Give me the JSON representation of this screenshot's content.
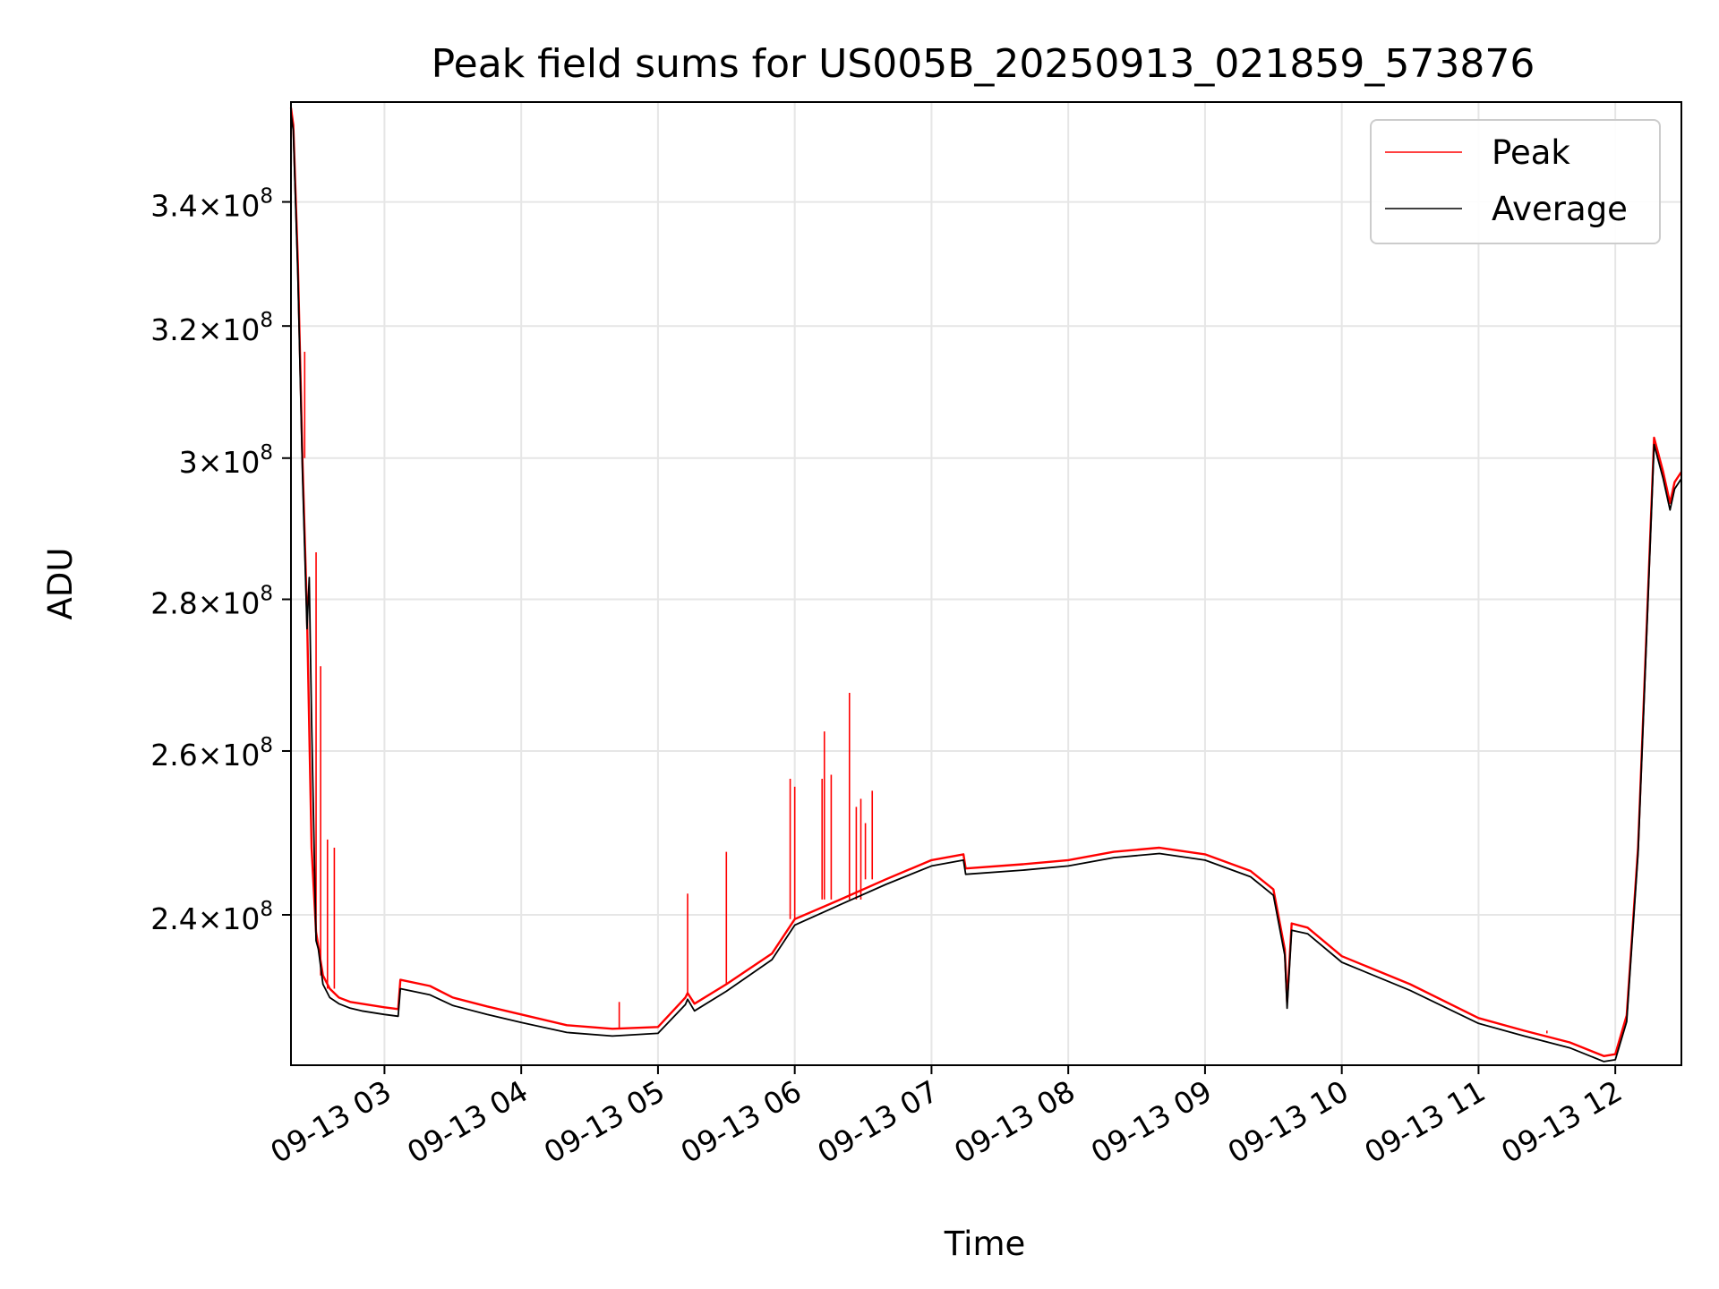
{
  "chart_data": {
    "type": "line",
    "title": "Peak field sums for US005B_20250913_021859_573876",
    "xlabel": "Time",
    "ylabel": "ADU",
    "x_range": [
      "2025-09-13 02:18:59",
      "2025-09-13 12:29:00"
    ],
    "y_range": [
      223000000,
      357000000
    ],
    "y_scale": "log",
    "grid": true,
    "legend_position": "upper right",
    "x_ticks": [
      {
        "label": "09-13 03",
        "t": "2025-09-13 03:00"
      },
      {
        "label": "09-13 04",
        "t": "2025-09-13 04:00"
      },
      {
        "label": "09-13 05",
        "t": "2025-09-13 05:00"
      },
      {
        "label": "09-13 06",
        "t": "2025-09-13 06:00"
      },
      {
        "label": "09-13 07",
        "t": "2025-09-13 07:00"
      },
      {
        "label": "09-13 08",
        "t": "2025-09-13 08:00"
      },
      {
        "label": "09-13 09",
        "t": "2025-09-13 09:00"
      },
      {
        "label": "09-13 10",
        "t": "2025-09-13 10:00"
      },
      {
        "label": "09-13 11",
        "t": "2025-09-13 11:00"
      },
      {
        "label": "09-13 12",
        "t": "2025-09-13 12:00"
      }
    ],
    "y_ticks": [
      {
        "mant": "2.4",
        "value": 240000000
      },
      {
        "mant": "2.6",
        "value": 260000000
      },
      {
        "mant": "2.8",
        "value": 280000000
      },
      {
        "mant": "3",
        "value": 300000000
      },
      {
        "mant": "3.2",
        "value": 320000000
      },
      {
        "mant": "3.4",
        "value": 340000000
      }
    ],
    "tick_times": "×10",
    "tick_exp": "8",
    "series": [
      {
        "name": "Peak",
        "color": "#ff0000",
        "x": [
          "2025-09-13 02:19",
          "2025-09-13 02:20",
          "2025-09-13 02:22",
          "2025-09-13 02:24",
          "2025-09-13 02:26",
          "2025-09-13 02:28",
          "2025-09-13 02:30",
          "2025-09-13 02:33",
          "2025-09-13 02:36",
          "2025-09-13 02:40",
          "2025-09-13 02:45",
          "2025-09-13 02:50",
          "2025-09-13 02:55",
          "2025-09-13 03:00",
          "2025-09-13 03:06",
          "2025-09-13 03:07",
          "2025-09-13 03:20",
          "2025-09-13 03:30",
          "2025-09-13 03:45",
          "2025-09-13 04:00",
          "2025-09-13 04:20",
          "2025-09-13 04:40",
          "2025-09-13 05:00",
          "2025-09-13 05:12",
          "2025-09-13 05:13",
          "2025-09-13 05:16",
          "2025-09-13 05:30",
          "2025-09-13 05:50",
          "2025-09-13 06:00",
          "2025-09-13 06:20",
          "2025-09-13 06:40",
          "2025-09-13 07:00",
          "2025-09-13 07:14",
          "2025-09-13 07:15",
          "2025-09-13 07:40",
          "2025-09-13 08:00",
          "2025-09-13 08:20",
          "2025-09-13 08:40",
          "2025-09-13 09:00",
          "2025-09-13 09:20",
          "2025-09-13 09:30",
          "2025-09-13 09:35",
          "2025-09-13 09:36",
          "2025-09-13 09:38",
          "2025-09-13 09:45",
          "2025-09-13 10:00",
          "2025-09-13 10:30",
          "2025-09-13 11:00",
          "2025-09-13 11:20",
          "2025-09-13 11:40",
          "2025-09-13 11:55",
          "2025-09-13 12:00",
          "2025-09-13 12:05",
          "2025-09-13 12:10",
          "2025-09-13 12:14",
          "2025-09-13 12:17",
          "2025-09-13 12:21",
          "2025-09-13 12:24",
          "2025-09-13 12:26",
          "2025-09-13 12:29"
        ],
        "values": [
          356000000,
          353000000,
          330000000,
          300000000,
          278000000,
          248000000,
          238000000,
          233000000,
          231500000,
          230500000,
          230000000,
          229800000,
          229600000,
          229400000,
          229200000,
          232500000,
          231800000,
          230500000,
          229500000,
          228600000,
          227400000,
          227000000,
          227200000,
          230500000,
          231000000,
          229800000,
          232000000,
          235500000,
          239500000,
          241800000,
          244200000,
          246500000,
          247200000,
          245500000,
          246000000,
          246500000,
          247500000,
          248000000,
          247200000,
          245200000,
          243000000,
          236000000,
          230000000,
          239000000,
          238500000,
          235200000,
          232000000,
          228200000,
          226800000,
          225500000,
          224000000,
          224200000,
          228500000,
          248000000,
          278000000,
          303000000,
          298000000,
          293500000,
          296500000,
          298000000
        ],
        "spikes": [
          {
            "t": "2025-09-13 02:25",
            "value": 316000000
          },
          {
            "t": "2025-09-13 02:30",
            "value": 286500000
          },
          {
            "t": "2025-09-13 02:32",
            "value": 271000000
          },
          {
            "t": "2025-09-13 02:35",
            "value": 249000000
          },
          {
            "t": "2025-09-13 02:38",
            "value": 248000000
          },
          {
            "t": "2025-09-13 04:43",
            "value": 230000000
          },
          {
            "t": "2025-09-13 05:13",
            "value": 242500000
          },
          {
            "t": "2025-09-13 05:30",
            "value": 247500000
          },
          {
            "t": "2025-09-13 05:58",
            "value": 256500000
          },
          {
            "t": "2025-09-13 06:00",
            "value": 255500000
          },
          {
            "t": "2025-09-13 06:12",
            "value": 256500000
          },
          {
            "t": "2025-09-13 06:13",
            "value": 262500000
          },
          {
            "t": "2025-09-13 06:16",
            "value": 257000000
          },
          {
            "t": "2025-09-13 06:24",
            "value": 267500000
          },
          {
            "t": "2025-09-13 06:27",
            "value": 253000000
          },
          {
            "t": "2025-09-13 06:29",
            "value": 254000000
          },
          {
            "t": "2025-09-13 06:31",
            "value": 251000000
          },
          {
            "t": "2025-09-13 06:34",
            "value": 255000000
          },
          {
            "t": "2025-09-13 11:30",
            "value": 226500000
          },
          {
            "t": "2025-09-13 11:40",
            "value": 225500000
          }
        ]
      },
      {
        "name": "Average",
        "color": "#000000",
        "x": [
          "2025-09-13 02:19",
          "2025-09-13 02:20",
          "2025-09-13 02:22",
          "2025-09-13 02:24",
          "2025-09-13 02:26",
          "2025-09-13 02:27",
          "2025-09-13 02:28",
          "2025-09-13 02:30",
          "2025-09-13 02:31",
          "2025-09-13 02:33",
          "2025-09-13 02:36",
          "2025-09-13 02:40",
          "2025-09-13 02:45",
          "2025-09-13 02:50",
          "2025-09-13 02:55",
          "2025-09-13 03:00",
          "2025-09-13 03:06",
          "2025-09-13 03:07",
          "2025-09-13 03:20",
          "2025-09-13 03:30",
          "2025-09-13 03:45",
          "2025-09-13 04:00",
          "2025-09-13 04:20",
          "2025-09-13 04:40",
          "2025-09-13 05:00",
          "2025-09-13 05:12",
          "2025-09-13 05:13",
          "2025-09-13 05:16",
          "2025-09-13 05:30",
          "2025-09-13 05:50",
          "2025-09-13 06:00",
          "2025-09-13 06:20",
          "2025-09-13 06:40",
          "2025-09-13 07:00",
          "2025-09-13 07:14",
          "2025-09-13 07:15",
          "2025-09-13 07:40",
          "2025-09-13 08:00",
          "2025-09-13 08:20",
          "2025-09-13 08:40",
          "2025-09-13 09:00",
          "2025-09-13 09:20",
          "2025-09-13 09:30",
          "2025-09-13 09:35",
          "2025-09-13 09:36",
          "2025-09-13 09:38",
          "2025-09-13 09:45",
          "2025-09-13 10:00",
          "2025-09-13 10:30",
          "2025-09-13 11:00",
          "2025-09-13 11:20",
          "2025-09-13 11:40",
          "2025-09-13 11:55",
          "2025-09-13 12:00",
          "2025-09-13 12:05",
          "2025-09-13 12:10",
          "2025-09-13 12:14",
          "2025-09-13 12:17",
          "2025-09-13 12:21",
          "2025-09-13 12:24",
          "2025-09-13 12:26",
          "2025-09-13 12:29"
        ],
        "values": [
          355000000,
          352000000,
          328000000,
          298000000,
          276000000,
          283000000,
          264000000,
          237000000,
          236000000,
          232000000,
          230500000,
          229800000,
          229300000,
          229000000,
          228800000,
          228600000,
          228400000,
          231500000,
          230800000,
          229600000,
          228600000,
          227700000,
          226600000,
          226200000,
          226500000,
          229700000,
          230300000,
          229000000,
          231200000,
          234800000,
          238800000,
          241200000,
          243600000,
          245800000,
          246500000,
          244800000,
          245300000,
          245800000,
          246800000,
          247300000,
          246500000,
          244500000,
          242300000,
          235300000,
          229300000,
          238200000,
          237800000,
          234500000,
          231300000,
          227600000,
          226200000,
          224900000,
          223400000,
          223600000,
          227800000,
          247300000,
          277000000,
          302000000,
          297000000,
          292500000,
          295500000,
          297000000
        ]
      }
    ]
  }
}
